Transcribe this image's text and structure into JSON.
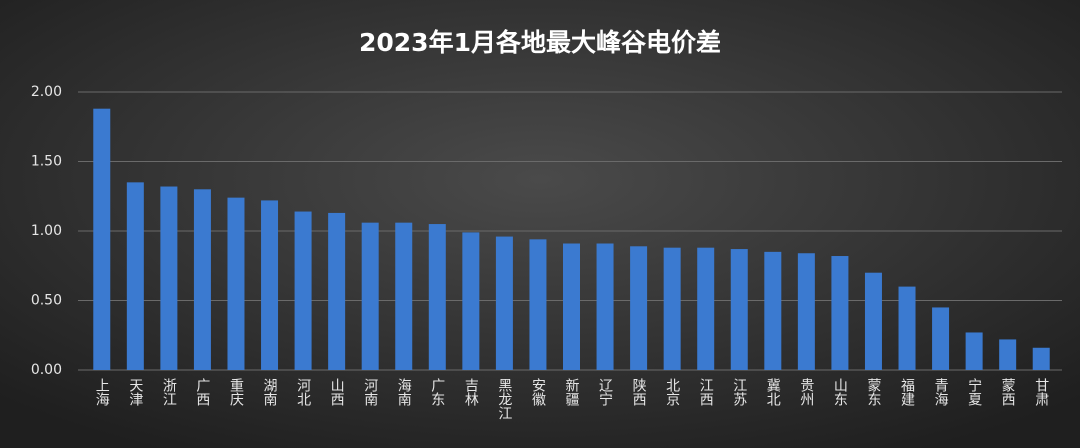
{
  "chart_data": {
    "type": "bar",
    "title": "2023年1月各地最大峰谷电价差",
    "categories": [
      "上海",
      "天津",
      "浙江",
      "广西",
      "重庆",
      "湖南",
      "河北",
      "山西",
      "河南",
      "海南",
      "广东",
      "吉林",
      "黑龙江",
      "安徽",
      "新疆",
      "辽宁",
      "陕西",
      "北京",
      "江西",
      "江苏",
      "冀北",
      "贵州",
      "山东",
      "蒙东",
      "福建",
      "青海",
      "宁夏",
      "蒙西",
      "甘肃"
    ],
    "values": [
      1.88,
      1.35,
      1.32,
      1.3,
      1.24,
      1.22,
      1.14,
      1.13,
      1.06,
      1.06,
      1.05,
      0.99,
      0.96,
      0.94,
      0.91,
      0.91,
      0.89,
      0.88,
      0.88,
      0.87,
      0.85,
      0.84,
      0.82,
      0.7,
      0.6,
      0.45,
      0.27,
      0.22,
      0.16
    ],
    "color": "#3b7ad0",
    "ylim": [
      0,
      2
    ],
    "yticks": [
      {
        "value": 0,
        "label": "0.00"
      },
      {
        "value": 0.5,
        "label": "0.50"
      },
      {
        "value": 1,
        "label": "1.00"
      },
      {
        "value": 1.5,
        "label": "1.50"
      },
      {
        "value": 2,
        "label": "2.00"
      }
    ],
    "grid": true
  }
}
